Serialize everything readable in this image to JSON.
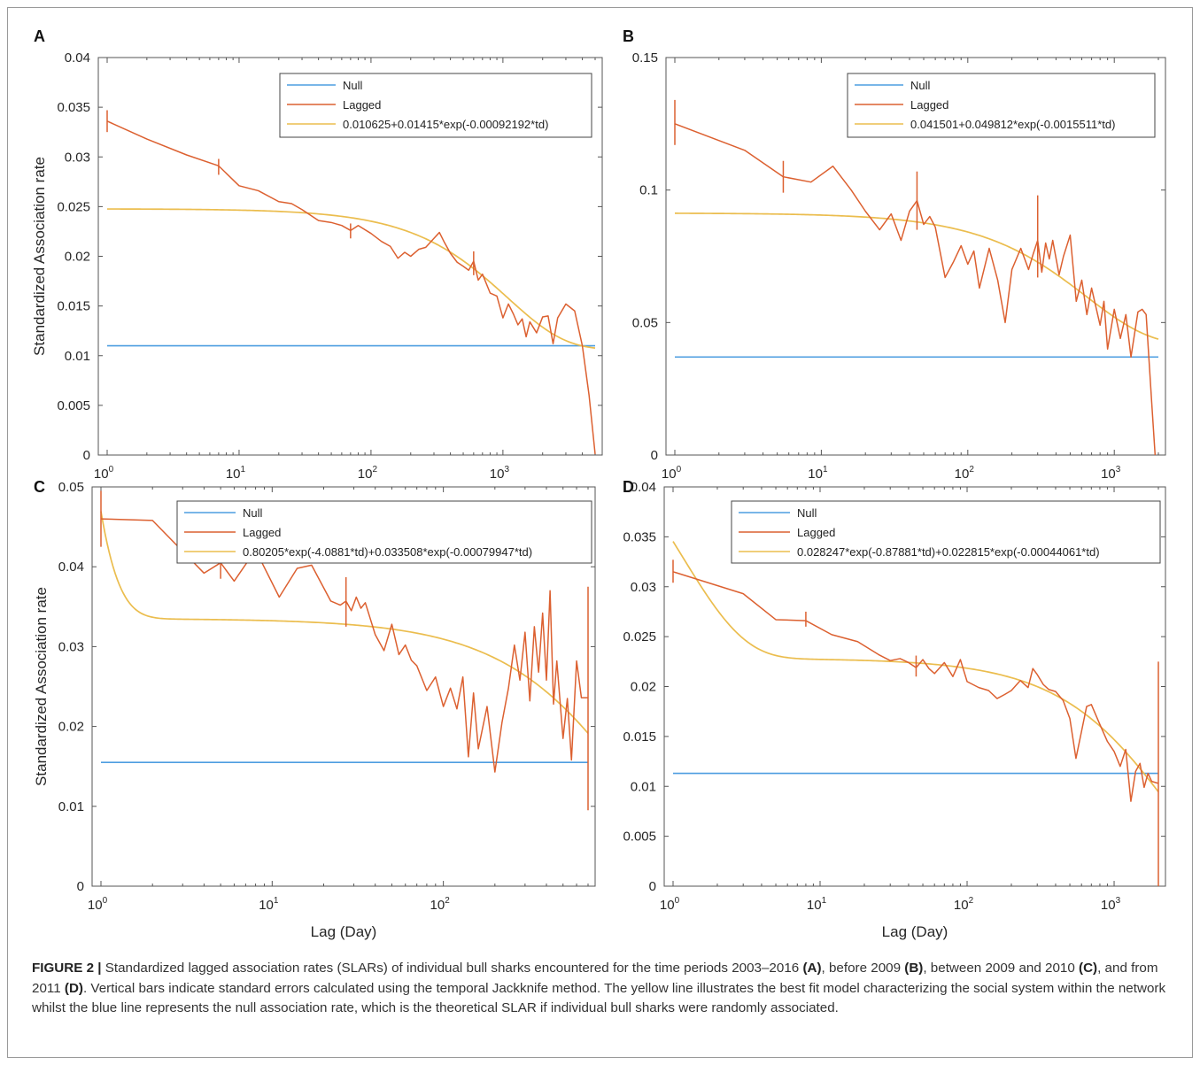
{
  "colors": {
    "null": "#4d9ee0",
    "lagged": "#dc6030",
    "fit": "#ebbd4e",
    "axis": "#555555"
  },
  "caption": {
    "lead": "FIGURE 2 |",
    "segments": [
      {
        "text": " Standardized lagged association rates (SLARs) of individual bull sharks encountered for the time periods 2003–2016 ",
        "bold": false
      },
      {
        "text": "(A)",
        "bold": true
      },
      {
        "text": ", before 2009 ",
        "bold": false
      },
      {
        "text": "(B)",
        "bold": true
      },
      {
        "text": ", between 2009 and 2010 ",
        "bold": false
      },
      {
        "text": "(C)",
        "bold": true
      },
      {
        "text": ", and from 2011 ",
        "bold": false
      },
      {
        "text": "(D)",
        "bold": true
      },
      {
        "text": ". Vertical bars indicate standard errors calculated using the temporal Jackknife method. The yellow line illustrates the best fit model characterizing the social system within the network whilst the blue line represents the null association rate, which is the theoretical SLAR if individual bull sharks were randomly associated.",
        "bold": false
      }
    ]
  },
  "chart_data": [
    {
      "panel": "A",
      "type": "line",
      "xscale": "log",
      "xlim": [
        1,
        5000
      ],
      "ylim": [
        0,
        0.04
      ],
      "xlabel": "",
      "ylabel": "Standardized Association rate",
      "yticks": [
        "0",
        "0.005",
        "0.01",
        "0.015",
        "0.02",
        "0.025",
        "0.03",
        "0.035",
        "0.04"
      ],
      "xticks": [
        1,
        10,
        100,
        1000
      ],
      "legend": [
        "Null",
        "Lagged",
        "0.010625+0.01415*exp(-0.00092192*td)"
      ],
      "null_rate": 0.011,
      "fit": {
        "a": 0.010625,
        "terms": [
          [
            0.01415,
            0.00092192
          ]
        ]
      },
      "lagged": [
        [
          1,
          0.0336
        ],
        [
          2,
          0.0318
        ],
        [
          4,
          0.0302
        ],
        [
          7,
          0.0291
        ],
        [
          10,
          0.0271
        ],
        [
          14,
          0.0266
        ],
        [
          20,
          0.0255
        ],
        [
          25,
          0.0253
        ],
        [
          30,
          0.0247
        ],
        [
          40,
          0.0236
        ],
        [
          50,
          0.0234
        ],
        [
          60,
          0.0231
        ],
        [
          70,
          0.0226
        ],
        [
          80,
          0.0231
        ],
        [
          100,
          0.0223
        ],
        [
          120,
          0.0215
        ],
        [
          140,
          0.021
        ],
        [
          160,
          0.0198
        ],
        [
          180,
          0.0204
        ],
        [
          200,
          0.02
        ],
        [
          230,
          0.0207
        ],
        [
          260,
          0.0209
        ],
        [
          300,
          0.0218
        ],
        [
          330,
          0.0224
        ],
        [
          360,
          0.0214
        ],
        [
          400,
          0.0203
        ],
        [
          450,
          0.0194
        ],
        [
          500,
          0.019
        ],
        [
          550,
          0.0186
        ],
        [
          600,
          0.0195
        ],
        [
          650,
          0.0176
        ],
        [
          700,
          0.0182
        ],
        [
          800,
          0.0163
        ],
        [
          900,
          0.016
        ],
        [
          1000,
          0.0138
        ],
        [
          1100,
          0.0152
        ],
        [
          1200,
          0.0142
        ],
        [
          1300,
          0.0131
        ],
        [
          1400,
          0.0137
        ],
        [
          1500,
          0.0119
        ],
        [
          1600,
          0.0134
        ],
        [
          1800,
          0.0123
        ],
        [
          2000,
          0.0139
        ],
        [
          2200,
          0.014
        ],
        [
          2400,
          0.0112
        ],
        [
          2600,
          0.0138
        ],
        [
          3000,
          0.0152
        ],
        [
          3500,
          0.0145
        ],
        [
          4000,
          0.011
        ],
        [
          4500,
          0.006
        ],
        [
          5000,
          0.0001
        ]
      ],
      "errors": [
        [
          1,
          0.0325,
          0.0347
        ],
        [
          7,
          0.0282,
          0.0298
        ],
        [
          70,
          0.0218,
          0.0233
        ],
        [
          600,
          0.0181,
          0.0205
        ]
      ]
    },
    {
      "panel": "B",
      "type": "line",
      "xscale": "log",
      "xlim": [
        1,
        2000
      ],
      "ylim": [
        0,
        0.15
      ],
      "xlabel": "",
      "ylabel": "",
      "yticks": [
        "0",
        "0.05",
        "0.1",
        "0.15"
      ],
      "xticks": [
        1,
        10,
        100,
        1000
      ],
      "legend": [
        "Null",
        "Lagged",
        "0.041501+0.049812*exp(-0.0015511*td)"
      ],
      "null_rate": 0.037,
      "fit": {
        "a": 0.041501,
        "terms": [
          [
            0.049812,
            0.0015511
          ]
        ]
      },
      "lagged": [
        [
          1,
          0.125
        ],
        [
          3,
          0.115
        ],
        [
          5.5,
          0.105
        ],
        [
          8.5,
          0.103
        ],
        [
          12,
          0.109
        ],
        [
          16,
          0.1
        ],
        [
          20,
          0.092
        ],
        [
          25,
          0.085
        ],
        [
          30,
          0.091
        ],
        [
          35,
          0.081
        ],
        [
          40,
          0.092
        ],
        [
          45,
          0.096
        ],
        [
          50,
          0.087
        ],
        [
          55,
          0.09
        ],
        [
          60,
          0.086
        ],
        [
          70,
          0.067
        ],
        [
          80,
          0.073
        ],
        [
          90,
          0.079
        ],
        [
          100,
          0.072
        ],
        [
          110,
          0.077
        ],
        [
          120,
          0.063
        ],
        [
          140,
          0.078
        ],
        [
          160,
          0.066
        ],
        [
          180,
          0.05
        ],
        [
          200,
          0.07
        ],
        [
          230,
          0.078
        ],
        [
          260,
          0.07
        ],
        [
          280,
          0.076
        ],
        [
          300,
          0.081
        ],
        [
          320,
          0.069
        ],
        [
          340,
          0.08
        ],
        [
          360,
          0.074
        ],
        [
          380,
          0.081
        ],
        [
          420,
          0.068
        ],
        [
          450,
          0.075
        ],
        [
          500,
          0.083
        ],
        [
          550,
          0.058
        ],
        [
          600,
          0.066
        ],
        [
          650,
          0.053
        ],
        [
          700,
          0.063
        ],
        [
          800,
          0.049
        ],
        [
          850,
          0.058
        ],
        [
          900,
          0.04
        ],
        [
          1000,
          0.055
        ],
        [
          1100,
          0.044
        ],
        [
          1200,
          0.053
        ],
        [
          1300,
          0.037
        ],
        [
          1450,
          0.054
        ],
        [
          1550,
          0.055
        ],
        [
          1650,
          0.053
        ],
        [
          1800,
          0.02
        ],
        [
          1900,
          0.0
        ]
      ],
      "errors": [
        [
          1,
          0.117,
          0.134
        ],
        [
          5.5,
          0.099,
          0.111
        ],
        [
          45,
          0.085,
          0.107
        ],
        [
          300,
          0.067,
          0.098
        ]
      ]
    },
    {
      "panel": "C",
      "type": "line",
      "xscale": "log",
      "xlim": [
        1,
        700
      ],
      "ylim": [
        0,
        0.05
      ],
      "xlabel": "Lag (Day)",
      "ylabel": "Standardized Association rate",
      "yticks": [
        "0",
        "0.01",
        "0.02",
        "0.03",
        "0.04",
        "0.05"
      ],
      "xticks": [
        1,
        10,
        100
      ],
      "legend": [
        "Null",
        "Lagged",
        "0.80205*exp(-4.0881*td)+0.033508*exp(-0.00079947*td)"
      ],
      "null_rate": 0.0155,
      "fit": {
        "a": 0,
        "terms": [
          [
            0.80205,
            4.0881
          ],
          [
            0.033508,
            0.00079947
          ]
        ]
      },
      "lagged": [
        [
          1,
          0.046
        ],
        [
          2,
          0.0458
        ],
        [
          4,
          0.0392
        ],
        [
          5,
          0.0405
        ],
        [
          6,
          0.0382
        ],
        [
          8,
          0.0421
        ],
        [
          11,
          0.0362
        ],
        [
          14,
          0.0398
        ],
        [
          17,
          0.0402
        ],
        [
          22,
          0.0357
        ],
        [
          25,
          0.0352
        ],
        [
          27,
          0.0357
        ],
        [
          29,
          0.0345
        ],
        [
          31,
          0.0362
        ],
        [
          33,
          0.0348
        ],
        [
          35,
          0.0355
        ],
        [
          40,
          0.0315
        ],
        [
          45,
          0.0295
        ],
        [
          50,
          0.0328
        ],
        [
          55,
          0.029
        ],
        [
          60,
          0.0302
        ],
        [
          65,
          0.0283
        ],
        [
          70,
          0.0276
        ],
        [
          80,
          0.0245
        ],
        [
          90,
          0.0262
        ],
        [
          100,
          0.0225
        ],
        [
          110,
          0.0248
        ],
        [
          120,
          0.0222
        ],
        [
          130,
          0.0262
        ],
        [
          140,
          0.0162
        ],
        [
          150,
          0.0242
        ],
        [
          160,
          0.0172
        ],
        [
          180,
          0.0225
        ],
        [
          200,
          0.0143
        ],
        [
          220,
          0.0205
        ],
        [
          240,
          0.0248
        ],
        [
          260,
          0.0302
        ],
        [
          280,
          0.0258
        ],
        [
          300,
          0.0318
        ],
        [
          320,
          0.0232
        ],
        [
          340,
          0.0325
        ],
        [
          360,
          0.0268
        ],
        [
          380,
          0.0342
        ],
        [
          400,
          0.0258
        ],
        [
          420,
          0.037
        ],
        [
          440,
          0.0228
        ],
        [
          460,
          0.0282
        ],
        [
          500,
          0.0185
        ],
        [
          530,
          0.0235
        ],
        [
          560,
          0.0158
        ],
        [
          600,
          0.0282
        ],
        [
          640,
          0.0236
        ],
        [
          700,
          0.0236
        ]
      ],
      "errors": [
        [
          1,
          0.0425,
          0.0495
        ],
        [
          5,
          0.0385,
          0.0418
        ],
        [
          27,
          0.0325,
          0.0387
        ],
        [
          700,
          0.0095,
          0.0375
        ]
      ]
    },
    {
      "panel": "D",
      "type": "line",
      "xscale": "log",
      "xlim": [
        1,
        2000
      ],
      "ylim": [
        0,
        0.04
      ],
      "xlabel": "Lag (Day)",
      "ylabel": "",
      "yticks": [
        "0",
        "0.005",
        "0.01",
        "0.015",
        "0.02",
        "0.025",
        "0.03",
        "0.035",
        "0.04"
      ],
      "xticks": [
        1,
        10,
        100,
        1000
      ],
      "legend": [
        "Null",
        "Lagged",
        "0.028247*exp(-0.87881*td)+0.022815*exp(-0.00044061*td)"
      ],
      "null_rate": 0.0113,
      "fit": {
        "a": 0,
        "terms": [
          [
            0.028247,
            0.87881
          ],
          [
            0.022815,
            0.00044061
          ]
        ]
      },
      "lagged": [
        [
          1,
          0.0315
        ],
        [
          3,
          0.0293
        ],
        [
          5,
          0.0267
        ],
        [
          8,
          0.0266
        ],
        [
          12,
          0.0252
        ],
        [
          18,
          0.0245
        ],
        [
          25,
          0.0232
        ],
        [
          30,
          0.0226
        ],
        [
          35,
          0.0228
        ],
        [
          40,
          0.0224
        ],
        [
          45,
          0.0219
        ],
        [
          50,
          0.0227
        ],
        [
          55,
          0.0218
        ],
        [
          60,
          0.0213
        ],
        [
          70,
          0.0224
        ],
        [
          80,
          0.021
        ],
        [
          90,
          0.0227
        ],
        [
          100,
          0.0205
        ],
        [
          120,
          0.0199
        ],
        [
          140,
          0.0196
        ],
        [
          160,
          0.0188
        ],
        [
          180,
          0.0192
        ],
        [
          200,
          0.0196
        ],
        [
          230,
          0.0206
        ],
        [
          260,
          0.0199
        ],
        [
          280,
          0.0218
        ],
        [
          300,
          0.0212
        ],
        [
          330,
          0.0202
        ],
        [
          360,
          0.0197
        ],
        [
          400,
          0.0195
        ],
        [
          450,
          0.0186
        ],
        [
          500,
          0.0168
        ],
        [
          550,
          0.0128
        ],
        [
          600,
          0.0155
        ],
        [
          650,
          0.018
        ],
        [
          700,
          0.0182
        ],
        [
          800,
          0.0162
        ],
        [
          900,
          0.0145
        ],
        [
          1000,
          0.0135
        ],
        [
          1100,
          0.012
        ],
        [
          1200,
          0.0137
        ],
        [
          1300,
          0.0085
        ],
        [
          1400,
          0.0115
        ],
        [
          1500,
          0.0123
        ],
        [
          1600,
          0.0099
        ],
        [
          1700,
          0.0113
        ],
        [
          1800,
          0.0105
        ],
        [
          2000,
          0.0103
        ]
      ],
      "errors": [
        [
          1,
          0.0304,
          0.0327
        ],
        [
          8,
          0.026,
          0.0275
        ],
        [
          45,
          0.021,
          0.0231
        ],
        [
          2000,
          0.0,
          0.0225
        ]
      ]
    }
  ]
}
